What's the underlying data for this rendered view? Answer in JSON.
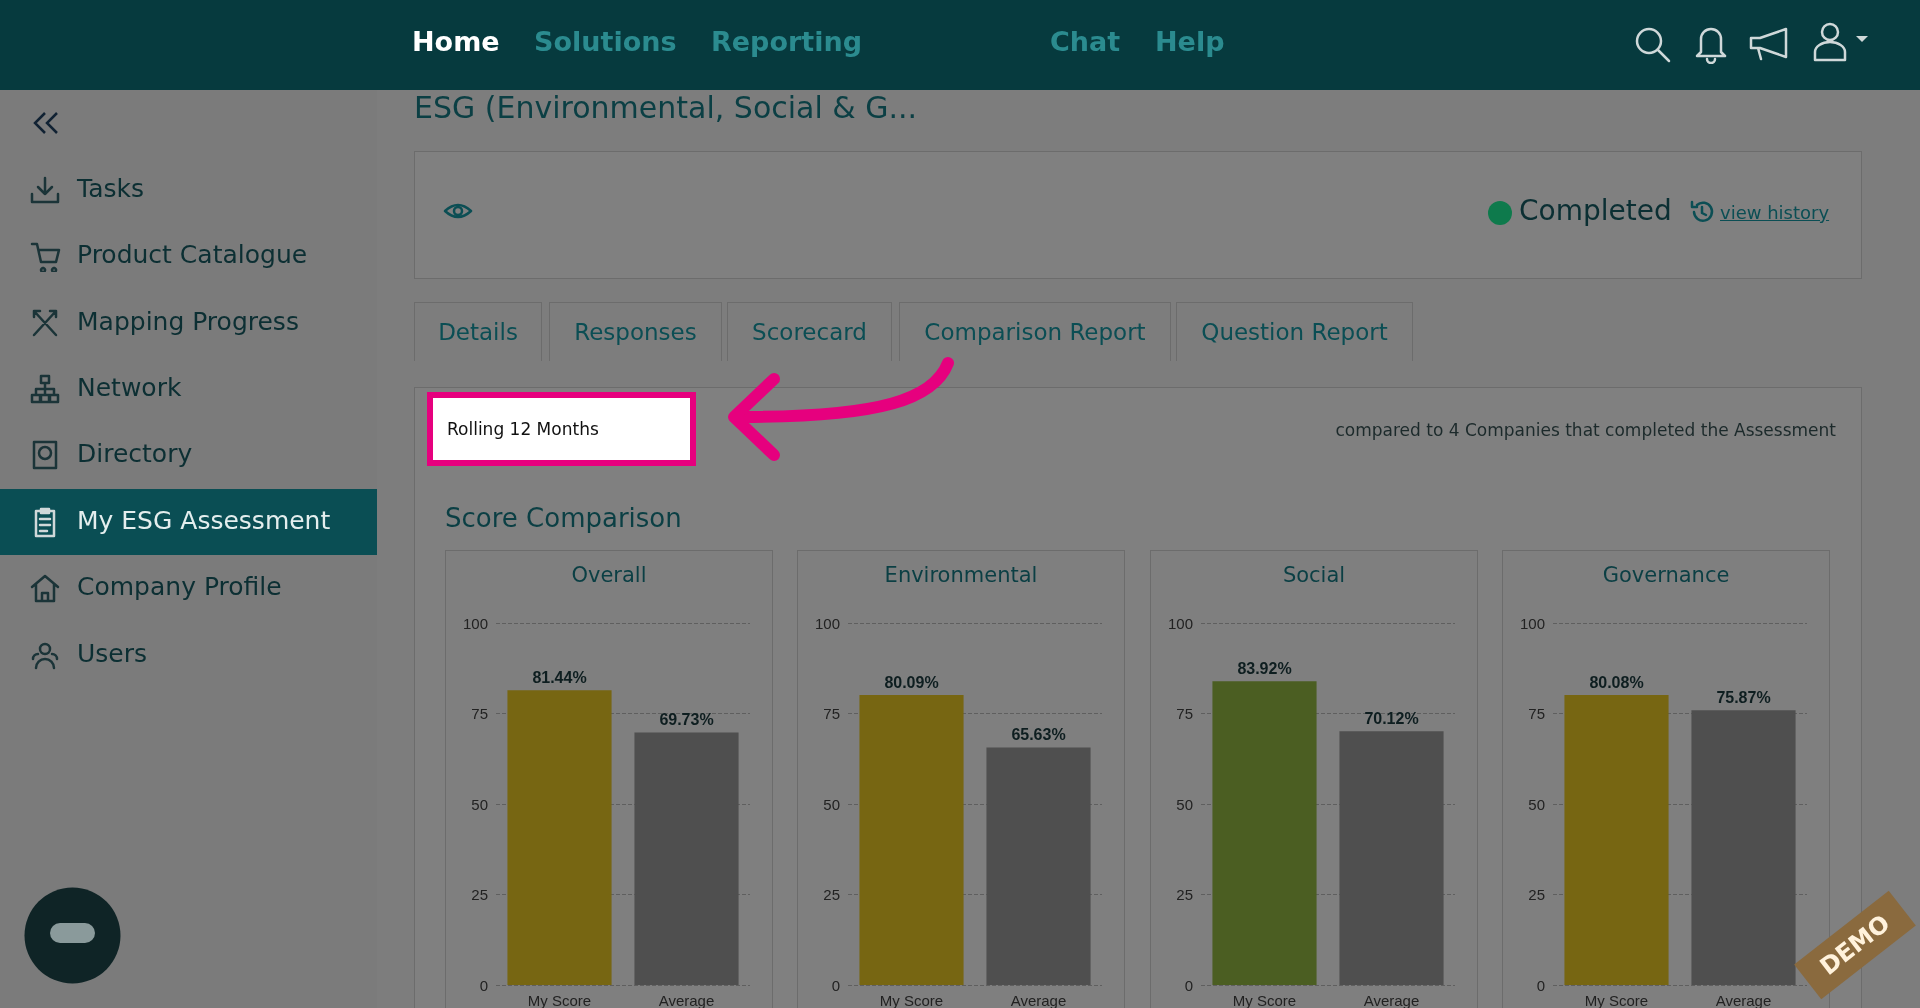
{
  "chart_data": [
    {
      "type": "other",
      "title": "ESG (Environmental, Social & G...",
      "annotations": [
        "Home",
        "Solutions",
        "Reporting",
        "Chat",
        "Help",
        "Tasks",
        "Product Catalogue",
        "Mapping Progress",
        "Network",
        "Directory",
        "My ESG Assessment",
        "Company Profile",
        "Users",
        "Completed",
        "view history",
        "Details",
        "Responses",
        "Scorecard",
        "Comparison Report",
        "Question Report",
        "Rolling 12 Months",
        "compared to 4 Companies that completed the Assessment",
        "Score Comparison",
        "DEMO"
      ]
    },
    {
      "type": "bar",
      "title": "Overall",
      "categories": [
        "My Score",
        "Average"
      ],
      "values": [
        81.44,
        69.73
      ],
      "colors": [
        "#776612",
        "#4f4f4f"
      ],
      "value_labels": [
        "81.44%",
        "69.73%"
      ],
      "ylim": [
        0,
        100
      ],
      "yticks": [
        0,
        25,
        50,
        75,
        100
      ],
      "grid": "y"
    },
    {
      "type": "bar",
      "title": "Environmental",
      "categories": [
        "My Score",
        "Average"
      ],
      "values": [
        80.09,
        65.63
      ],
      "colors": [
        "#776612",
        "#4f4f4f"
      ],
      "value_labels": [
        "80.09%",
        "65.63%"
      ],
      "ylim": [
        0,
        100
      ],
      "yticks": [
        0,
        25,
        50,
        75,
        100
      ],
      "grid": "y"
    },
    {
      "type": "bar",
      "title": "Social",
      "categories": [
        "My Score",
        "Average"
      ],
      "values": [
        83.92,
        70.12
      ],
      "colors": [
        "#4b5e22",
        "#4f4f4f"
      ],
      "value_labels": [
        "83.92%",
        "70.12%"
      ],
      "ylim": [
        0,
        100
      ],
      "yticks": [
        0,
        25,
        50,
        75,
        100
      ],
      "grid": "y"
    },
    {
      "type": "bar",
      "title": "Governance",
      "categories": [
        "My Score",
        "Average"
      ],
      "values": [
        80.08,
        75.87
      ],
      "colors": [
        "#776612",
        "#4f4f4f"
      ],
      "value_labels": [
        "80.08%",
        "75.87%"
      ],
      "ylim": [
        0,
        100
      ],
      "yticks": [
        0,
        25,
        50,
        75,
        100
      ],
      "grid": "y"
    }
  ]
}
